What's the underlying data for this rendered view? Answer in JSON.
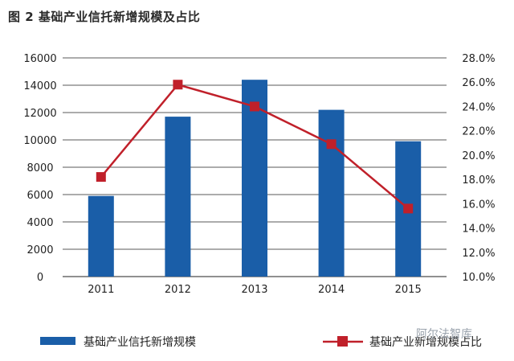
{
  "title": "图 2  基础产业信托新增规模及占比",
  "watermark": "阿尔法智库",
  "chart_data": {
    "type": "bar+line",
    "categories": [
      "2011",
      "2012",
      "2013",
      "2014",
      "2015"
    ],
    "series": [
      {
        "name": "基础产业信托新增规模",
        "type": "bar",
        "axis": "left",
        "values": [
          5900,
          11700,
          14400,
          12200,
          9900
        ],
        "color": "#1a5ea8"
      },
      {
        "name": "基础产业新增规模占比",
        "type": "line",
        "axis": "right",
        "values": [
          18.2,
          25.8,
          24.0,
          20.9,
          15.6
        ],
        "color": "#c0202a"
      }
    ],
    "y_left": {
      "min": 0,
      "max": 16000,
      "step": 2000,
      "ticks": [
        "0",
        "2000",
        "4000",
        "6000",
        "8000",
        "10000",
        "12000",
        "14000",
        "16000"
      ]
    },
    "y_right": {
      "min": 10,
      "max": 28,
      "step": 2,
      "ticks": [
        "10.0%",
        "12.0%",
        "14.0%",
        "16.0%",
        "18.0%",
        "20.0%",
        "22.0%",
        "24.0%",
        "26.0%",
        "28.0%"
      ]
    },
    "grid": true,
    "legend_position": "bottom"
  }
}
